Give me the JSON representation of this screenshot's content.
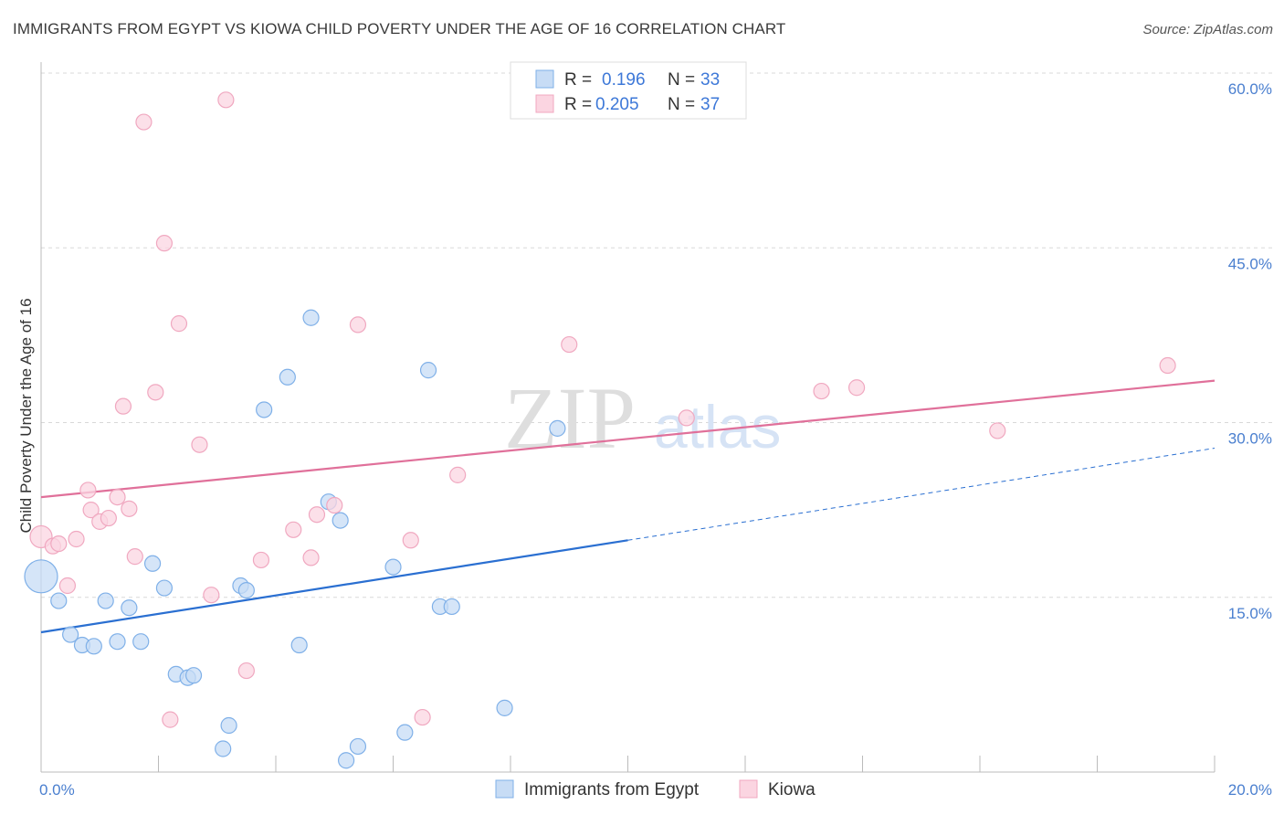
{
  "title": "IMMIGRANTS FROM EGYPT VS KIOWA CHILD POVERTY UNDER THE AGE OF 16 CORRELATION CHART",
  "source": "Source: ZipAtlas.com",
  "watermark": {
    "zip": "ZIP",
    "atlas": "atlas"
  },
  "chart_data": {
    "type": "scatter",
    "title": "IMMIGRANTS FROM EGYPT VS KIOWA CHILD POVERTY UNDER THE AGE OF 16 CORRELATION CHART",
    "xlabel": "",
    "ylabel": "Child Poverty Under the Age of 16",
    "xlim": [
      0,
      20
    ],
    "ylim": [
      0,
      60
    ],
    "x_tick_labels": [
      {
        "value": 0,
        "label": "0.0%"
      },
      {
        "value": 20,
        "label": "20.0%"
      }
    ],
    "y_tick_labels": [
      {
        "value": 15,
        "label": "15.0%"
      },
      {
        "value": 30,
        "label": "30.0%"
      },
      {
        "value": 45,
        "label": "45.0%"
      },
      {
        "value": 60,
        "label": "60.0%"
      }
    ],
    "legend": {
      "position": "top-center",
      "rows": [
        {
          "r_label": "R =",
          "r_value": "0.196",
          "n_label": "N =",
          "n_value": "33"
        },
        {
          "r_label": "R =",
          "r_value": "0.205",
          "n_label": "N =",
          "n_value": "37"
        }
      ]
    },
    "series": [
      {
        "name": "Immigrants from Egypt",
        "color": "#7fb0e8",
        "fill": "#c7dcf5",
        "line_color": "#2a6fd1",
        "trend": {
          "x0": 0,
          "y0": 12.0,
          "x1": 10,
          "y1": 19.9,
          "x_ext": 20,
          "y_ext": 27.8
        },
        "points": [
          {
            "x": 0.0,
            "y": 16.8,
            "size": 18
          },
          {
            "x": 0.3,
            "y": 14.7
          },
          {
            "x": 0.5,
            "y": 11.8
          },
          {
            "x": 0.7,
            "y": 10.9
          },
          {
            "x": 0.9,
            "y": 10.8
          },
          {
            "x": 1.1,
            "y": 14.7
          },
          {
            "x": 1.3,
            "y": 11.2
          },
          {
            "x": 1.5,
            "y": 14.1
          },
          {
            "x": 1.7,
            "y": 11.2
          },
          {
            "x": 1.9,
            "y": 17.9
          },
          {
            "x": 2.1,
            "y": 15.8
          },
          {
            "x": 2.3,
            "y": 8.4
          },
          {
            "x": 2.5,
            "y": 8.1
          },
          {
            "x": 2.6,
            "y": 8.3
          },
          {
            "x": 3.1,
            "y": 2.0
          },
          {
            "x": 3.2,
            "y": 4.0
          },
          {
            "x": 3.4,
            "y": 16.0
          },
          {
            "x": 3.5,
            "y": 15.6
          },
          {
            "x": 3.8,
            "y": 31.1
          },
          {
            "x": 4.2,
            "y": 33.9
          },
          {
            "x": 4.4,
            "y": 10.9
          },
          {
            "x": 4.6,
            "y": 39.0
          },
          {
            "x": 4.9,
            "y": 23.2
          },
          {
            "x": 5.1,
            "y": 21.6
          },
          {
            "x": 5.2,
            "y": 1.0
          },
          {
            "x": 5.4,
            "y": 2.2
          },
          {
            "x": 6.0,
            "y": 17.6
          },
          {
            "x": 6.2,
            "y": 3.4
          },
          {
            "x": 6.6,
            "y": 34.5
          },
          {
            "x": 6.8,
            "y": 14.2
          },
          {
            "x": 7.0,
            "y": 14.2
          },
          {
            "x": 7.9,
            "y": 5.5
          },
          {
            "x": 8.8,
            "y": 29.5
          }
        ]
      },
      {
        "name": "Kiowa",
        "color": "#f0a8c0",
        "fill": "#fbd5e1",
        "line_color": "#e0709a",
        "trend": {
          "x0": 0,
          "y0": 23.6,
          "x1": 20,
          "y1": 33.6
        },
        "points": [
          {
            "x": 0.0,
            "y": 20.2,
            "size": 12
          },
          {
            "x": 0.2,
            "y": 19.4
          },
          {
            "x": 0.3,
            "y": 19.6
          },
          {
            "x": 0.45,
            "y": 16.0
          },
          {
            "x": 0.6,
            "y": 20.0
          },
          {
            "x": 0.8,
            "y": 24.2
          },
          {
            "x": 0.85,
            "y": 22.5
          },
          {
            "x": 1.0,
            "y": 21.5
          },
          {
            "x": 1.15,
            "y": 21.8
          },
          {
            "x": 1.3,
            "y": 23.6
          },
          {
            "x": 1.4,
            "y": 31.4
          },
          {
            "x": 1.5,
            "y": 22.6
          },
          {
            "x": 1.6,
            "y": 18.5
          },
          {
            "x": 1.75,
            "y": 55.8
          },
          {
            "x": 1.95,
            "y": 32.6
          },
          {
            "x": 2.1,
            "y": 45.4
          },
          {
            "x": 2.2,
            "y": 4.5
          },
          {
            "x": 2.35,
            "y": 38.5
          },
          {
            "x": 2.7,
            "y": 28.1
          },
          {
            "x": 2.9,
            "y": 15.2
          },
          {
            "x": 3.15,
            "y": 57.7
          },
          {
            "x": 3.5,
            "y": 8.7
          },
          {
            "x": 3.75,
            "y": 18.2
          },
          {
            "x": 4.3,
            "y": 20.8
          },
          {
            "x": 4.6,
            "y": 18.4
          },
          {
            "x": 4.7,
            "y": 22.1
          },
          {
            "x": 5.0,
            "y": 22.9
          },
          {
            "x": 5.4,
            "y": 38.4
          },
          {
            "x": 6.3,
            "y": 19.9
          },
          {
            "x": 6.5,
            "y": 4.7
          },
          {
            "x": 7.1,
            "y": 25.5
          },
          {
            "x": 9.0,
            "y": 36.7
          },
          {
            "x": 11.0,
            "y": 30.4
          },
          {
            "x": 13.3,
            "y": 32.7
          },
          {
            "x": 13.9,
            "y": 33.0
          },
          {
            "x": 16.3,
            "y": 29.3
          },
          {
            "x": 19.2,
            "y": 34.9
          }
        ]
      }
    ]
  }
}
